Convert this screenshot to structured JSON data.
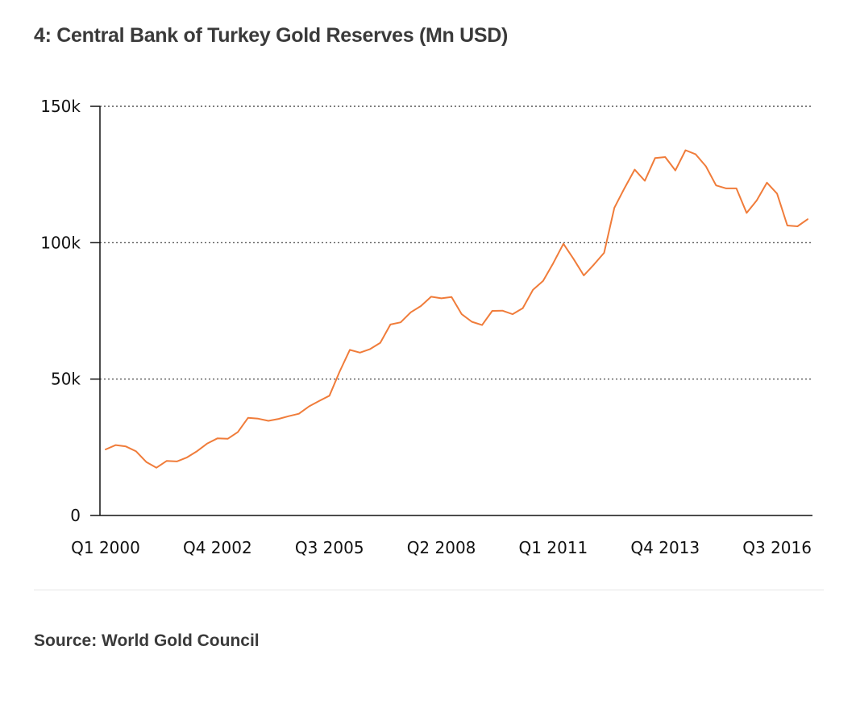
{
  "title": "4: Central Bank of Turkey Gold Reserves (Mn USD)",
  "source": "Source: World Gold Council",
  "colors": {
    "line": "#f07c3a",
    "axis": "#111111",
    "grid": "#333333"
  },
  "chart_data": {
    "type": "line",
    "title": "4: Central Bank of Turkey Gold Reserves (Mn USD)",
    "xlabel": "",
    "ylabel": "",
    "ylim": [
      0,
      150000
    ],
    "y_ticks": [
      0,
      50000,
      100000,
      150000
    ],
    "y_tick_labels": [
      "0",
      "50k",
      "100k",
      "150k"
    ],
    "grid": "horizontal dotted",
    "x_tick_labels": [
      "Q1 2000",
      "Q4 2002",
      "Q3 2005",
      "Q2 2008",
      "Q1 2011",
      "Q4 2013",
      "Q3 2016"
    ],
    "x_tick_positions": [
      0,
      11,
      22,
      33,
      44,
      55,
      66
    ],
    "series": [
      {
        "values": [
          24200,
          25800,
          25300,
          23500,
          19600,
          17500,
          20000,
          19800,
          21300,
          23600,
          26400,
          28300,
          28100,
          30600,
          35800,
          35500,
          34700,
          35400,
          36400,
          37300,
          40000,
          42000,
          43900,
          52700,
          60700,
          59700,
          61000,
          63300,
          70000,
          70800,
          74500,
          76800,
          80200,
          79600,
          80100,
          73800,
          71000,
          69800,
          75000,
          75100,
          73800,
          76000,
          82700,
          86000,
          92500,
          99600,
          94000,
          88000,
          92000,
          96300,
          112800,
          120000,
          126800,
          122700,
          131000,
          131400,
          126500,
          133900,
          132400,
          128000,
          121000,
          119900,
          119900,
          110900,
          115500,
          122000,
          118000,
          106300,
          106000,
          108600
        ]
      }
    ]
  }
}
